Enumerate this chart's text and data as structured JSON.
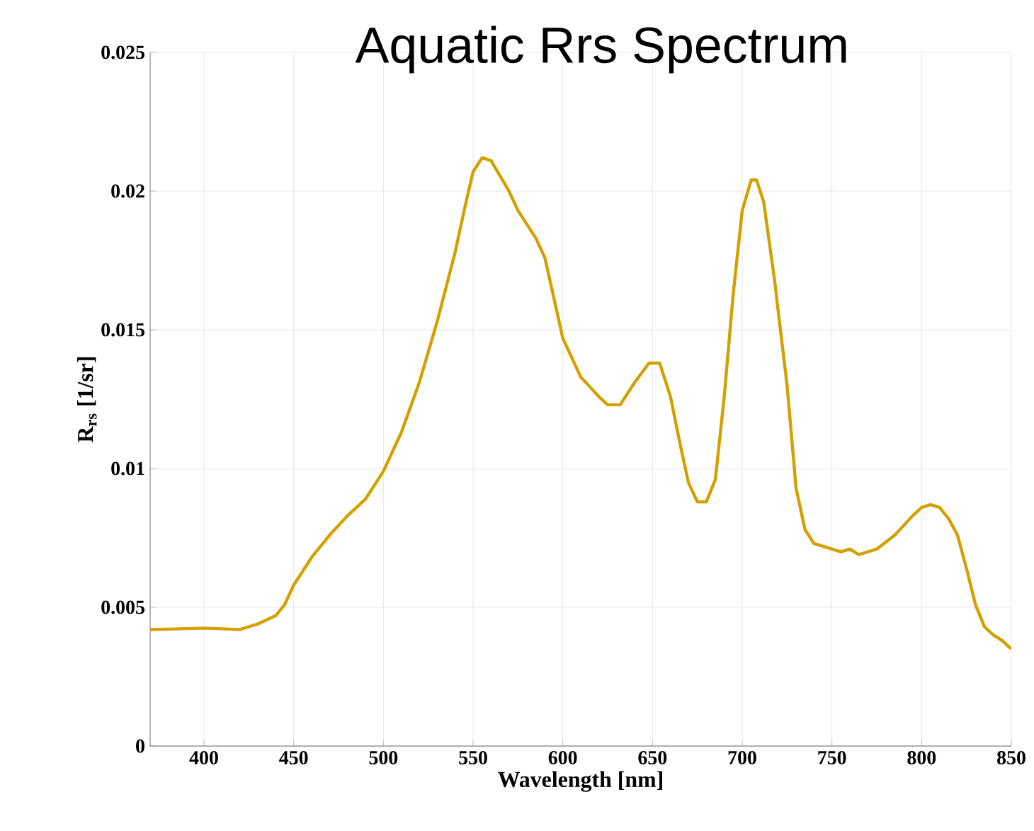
{
  "chart_data": {
    "type": "line",
    "title": "Aquatic Rrs Spectrum",
    "xlabel": "Wavelength [nm]",
    "ylabel": "R$_{rs}$ [1/sr]",
    "x": [
      370,
      390,
      400,
      420,
      430,
      440,
      445,
      450,
      460,
      470,
      480,
      490,
      500,
      510,
      520,
      530,
      540,
      545,
      550,
      555,
      560,
      570,
      575,
      585,
      590,
      600,
      610,
      620,
      625,
      632,
      640,
      648,
      654,
      660,
      665,
      670,
      675,
      680,
      685,
      690,
      695,
      700,
      705,
      708,
      712,
      718,
      725,
      730,
      735,
      740,
      750,
      755,
      760,
      765,
      770,
      775,
      785,
      795,
      800,
      805,
      810,
      815,
      820,
      825,
      830,
      835,
      840,
      845,
      850
    ],
    "series": [
      {
        "color": "#d4a000",
        "values": [
          0.0042,
          0.00423,
          0.00425,
          0.0042,
          0.0044,
          0.0047,
          0.0051,
          0.0058,
          0.0068,
          0.0076,
          0.0083,
          0.0089,
          0.0099,
          0.0113,
          0.0131,
          0.0153,
          0.0178,
          0.0193,
          0.0207,
          0.0212,
          0.0211,
          0.02,
          0.0193,
          0.0183,
          0.0176,
          0.0147,
          0.0133,
          0.0126,
          0.0123,
          0.0123,
          0.0131,
          0.0138,
          0.0138,
          0.0126,
          0.011,
          0.0095,
          0.0088,
          0.0088,
          0.0096,
          0.0126,
          0.0163,
          0.0193,
          0.0204,
          0.0204,
          0.0196,
          0.0168,
          0.013,
          0.0093,
          0.0078,
          0.0073,
          0.0071,
          0.007,
          0.0071,
          0.0069,
          0.007,
          0.0071,
          0.0076,
          0.0083,
          0.0086,
          0.0087,
          0.0086,
          0.0082,
          0.0076,
          0.0064,
          0.0051,
          0.0043,
          0.004,
          0.0038,
          0.0035
        ]
      }
    ],
    "xlim": [
      370,
      850
    ],
    "ylim": [
      0,
      0.025
    ],
    "xticks": [
      400,
      450,
      500,
      550,
      600,
      650,
      700,
      750,
      800,
      850
    ],
    "yticks": [
      0,
      0.005,
      0.01,
      0.015,
      0.02,
      0.025
    ],
    "grid": true,
    "marker": "none",
    "line_style": "solid"
  }
}
